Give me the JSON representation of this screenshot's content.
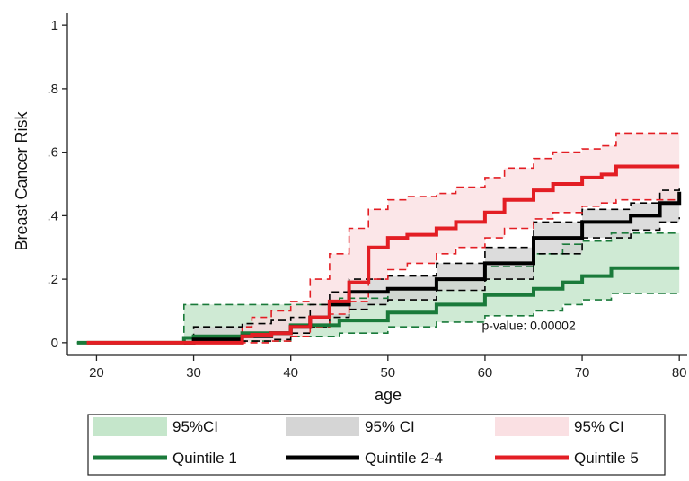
{
  "chart_data": {
    "type": "line",
    "step": true,
    "xlabel": "age",
    "ylabel": "Breast Cancer Risk",
    "xlim": [
      17,
      81
    ],
    "ylim": [
      -0.04,
      1.04
    ],
    "xticks": [
      20,
      30,
      40,
      50,
      60,
      70,
      80
    ],
    "xtick_labels": [
      "20",
      "30",
      "40",
      "50",
      "60",
      "70",
      "80"
    ],
    "yticks": [
      0,
      0.2,
      0.4,
      0.6,
      0.8,
      1
    ],
    "ytick_labels": [
      "0",
      ".2",
      ".4",
      ".6",
      ".8",
      "1"
    ],
    "grid": false,
    "annotation": {
      "text": "p-value: 0.00002",
      "x": 64.5,
      "y": 0.04
    },
    "series": [
      {
        "name": "Quintile 1",
        "color": "#1a7a3a",
        "ci_fill": "#bfe3c5",
        "x": [
          18,
          29,
          30,
          35,
          40,
          45,
          50,
          55,
          60,
          65,
          68,
          70,
          73,
          80
        ],
        "y": [
          0,
          0.015,
          0.02,
          0.03,
          0.055,
          0.07,
          0.095,
          0.12,
          0.15,
          0.17,
          0.19,
          0.21,
          0.235,
          0.235
        ],
        "ci_lower": [
          0,
          0,
          0,
          0.005,
          0.02,
          0.03,
          0.05,
          0.065,
          0.085,
          0.1,
          0.12,
          0.135,
          0.155,
          0.155
        ],
        "ci_upper": [
          0,
          0.12,
          0.12,
          0.12,
          0.12,
          0.14,
          0.17,
          0.2,
          0.24,
          0.28,
          0.31,
          0.32,
          0.345,
          0.345
        ]
      },
      {
        "name": "Quintile 2-4",
        "color": "#000000",
        "ci_fill": "#d0d0d0",
        "x": [
          29,
          30,
          35,
          38,
          40,
          42,
          44,
          46,
          48,
          50,
          55,
          60,
          65,
          70,
          75,
          78,
          80
        ],
        "y": [
          0,
          0.01,
          0.02,
          0.03,
          0.05,
          0.08,
          0.12,
          0.16,
          0.16,
          0.17,
          0.2,
          0.25,
          0.33,
          0.38,
          0.4,
          0.44,
          0.475
        ],
        "ci_lower": [
          0,
          0,
          0.005,
          0.01,
          0.03,
          0.05,
          0.08,
          0.105,
          0.12,
          0.135,
          0.165,
          0.2,
          0.28,
          0.33,
          0.355,
          0.38,
          0.395
        ],
        "ci_upper": [
          0,
          0.05,
          0.06,
          0.07,
          0.08,
          0.12,
          0.16,
          0.2,
          0.2,
          0.21,
          0.25,
          0.3,
          0.38,
          0.42,
          0.44,
          0.48,
          0.49
        ]
      },
      {
        "name": "Quintile 5",
        "color": "#e31e24",
        "ci_fill": "#f9dde0",
        "x": [
          19,
          34.5,
          35,
          36,
          38,
          40,
          42,
          44,
          46,
          48,
          50,
          52,
          55,
          57,
          60,
          62,
          65,
          67,
          70,
          72,
          73.5,
          80
        ],
        "y": [
          0,
          0,
          0.02,
          0.025,
          0.03,
          0.05,
          0.08,
          0.13,
          0.19,
          0.3,
          0.33,
          0.34,
          0.36,
          0.38,
          0.41,
          0.45,
          0.48,
          0.5,
          0.52,
          0.53,
          0.555,
          0.555
        ],
        "ci_lower": [
          0,
          0,
          0,
          0,
          0.005,
          0.02,
          0.05,
          0.09,
          0.13,
          0.2,
          0.23,
          0.25,
          0.28,
          0.3,
          0.33,
          0.36,
          0.39,
          0.41,
          0.43,
          0.44,
          0.45,
          0.45
        ],
        "ci_upper": [
          0,
          0,
          0.05,
          0.08,
          0.1,
          0.13,
          0.2,
          0.28,
          0.36,
          0.42,
          0.45,
          0.46,
          0.47,
          0.49,
          0.52,
          0.55,
          0.58,
          0.6,
          0.61,
          0.62,
          0.66,
          0.66
        ]
      }
    ],
    "legend": {
      "placement": "bottom",
      "rows": [
        [
          {
            "type": "band",
            "label": "95%CI",
            "color": "#bfe3c5"
          },
          {
            "type": "band",
            "label": "95% CI",
            "color": "#d0d0d0"
          },
          {
            "type": "band",
            "label": "95% CI",
            "color": "#f9dde0"
          }
        ],
        [
          {
            "type": "line",
            "label": "Quintile 1",
            "color": "#1a7a3a"
          },
          {
            "type": "line",
            "label": "Quintile 2-4",
            "color": "#000000"
          },
          {
            "type": "line",
            "label": "Quintile 5",
            "color": "#e31e24"
          }
        ]
      ]
    }
  }
}
